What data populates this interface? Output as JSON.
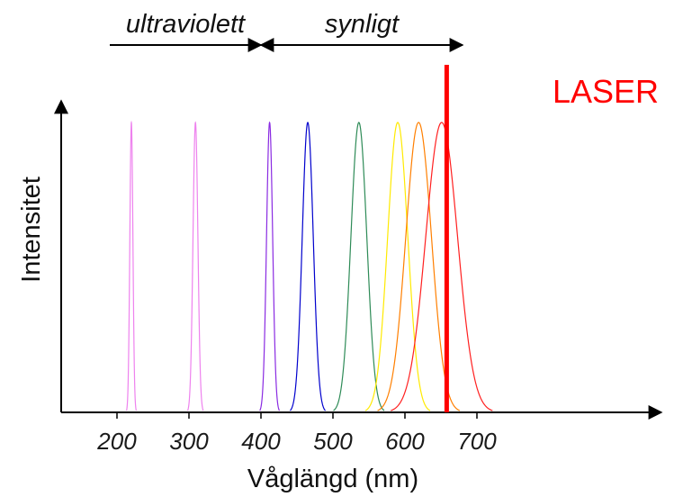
{
  "chart_data": {
    "type": "line",
    "title": "",
    "xlabel": "Våglängd (nm)",
    "ylabel": "Intensitet",
    "x_ticks": [
      "200",
      "300",
      "400",
      "500",
      "600",
      "700"
    ],
    "xlim": [
      140,
      800
    ],
    "ylim": [
      0,
      1
    ],
    "grid": false,
    "legend": "none",
    "range_labels": [
      {
        "label": "ultraviolett",
        "from": 190,
        "to": 400
      },
      {
        "label": "synligt",
        "from": 400,
        "to": 680
      }
    ],
    "laser": {
      "label": "LASER",
      "wavelength": 658,
      "color": "#ff0000"
    },
    "series": [
      {
        "center": 220,
        "fwhm": 5,
        "peak": 1.0,
        "color": "#ee82ee"
      },
      {
        "center": 309,
        "fwhm": 8,
        "peak": 1.0,
        "color": "#ee82ee"
      },
      {
        "center": 412,
        "fwhm": 10,
        "peak": 1.0,
        "color": "#8a2be2"
      },
      {
        "center": 465,
        "fwhm": 18,
        "peak": 1.0,
        "color": "#0000cd"
      },
      {
        "center": 536,
        "fwhm": 26,
        "peak": 1.0,
        "color": "#2e8b57"
      },
      {
        "center": 590,
        "fwhm": 33,
        "peak": 1.0,
        "color": "#ffea00"
      },
      {
        "center": 619,
        "fwhm": 42,
        "peak": 1.0,
        "color": "#ff7f00"
      },
      {
        "center": 651,
        "fwhm": 52,
        "peak": 1.0,
        "color": "#ff2020"
      }
    ]
  }
}
